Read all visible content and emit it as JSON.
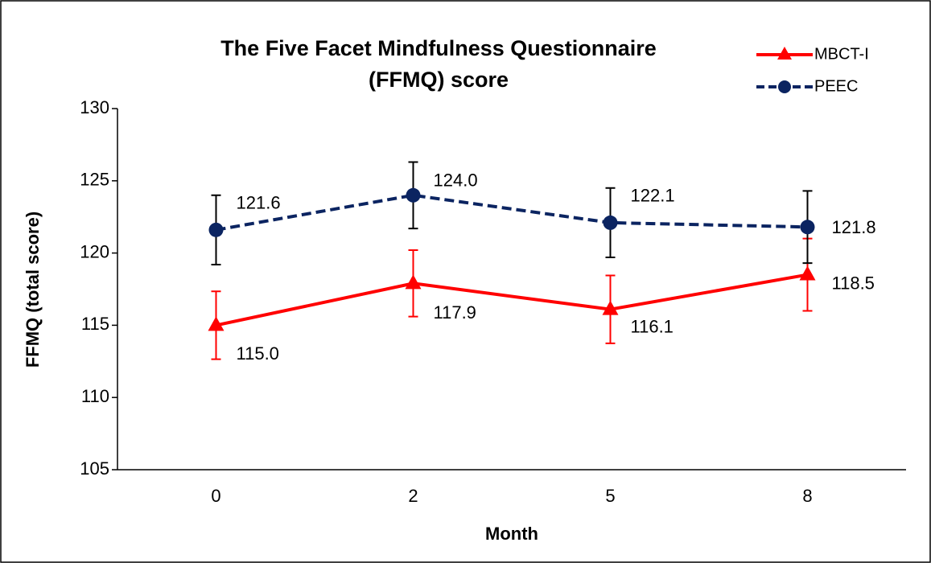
{
  "chart_data": {
    "type": "line",
    "title": [
      "The Five Facet Mindfulness Questionnaire",
      "(FFMQ) score"
    ],
    "x_label": "Month",
    "y_label": "FFMQ (total score)",
    "categories": [
      "0",
      "2",
      "5",
      "8"
    ],
    "series": [
      {
        "name": "MBCT-I",
        "color": "#ff0000",
        "error_color": "#ff0000",
        "marker": "triangle",
        "line_style": "solid",
        "values": [
          115.0,
          117.9,
          116.1,
          118.5
        ],
        "value_labels": [
          "115.0",
          "117.9",
          "116.1",
          "118.5"
        ],
        "errors": [
          2.35,
          2.3,
          2.35,
          2.5
        ]
      },
      {
        "name": "PEEC",
        "color": "#0b2461",
        "error_color": "#000000",
        "marker": "circle",
        "line_style": "dashed",
        "values": [
          121.6,
          124.0,
          122.1,
          121.8
        ],
        "value_labels": [
          "121.6",
          "124.0",
          "122.1",
          "121.8"
        ],
        "errors": [
          2.4,
          2.3,
          2.4,
          2.5
        ]
      }
    ],
    "ylim": [
      105,
      130
    ],
    "yticks": [
      105,
      110,
      115,
      120,
      125,
      130
    ],
    "grid": false,
    "legend": "upper right"
  }
}
